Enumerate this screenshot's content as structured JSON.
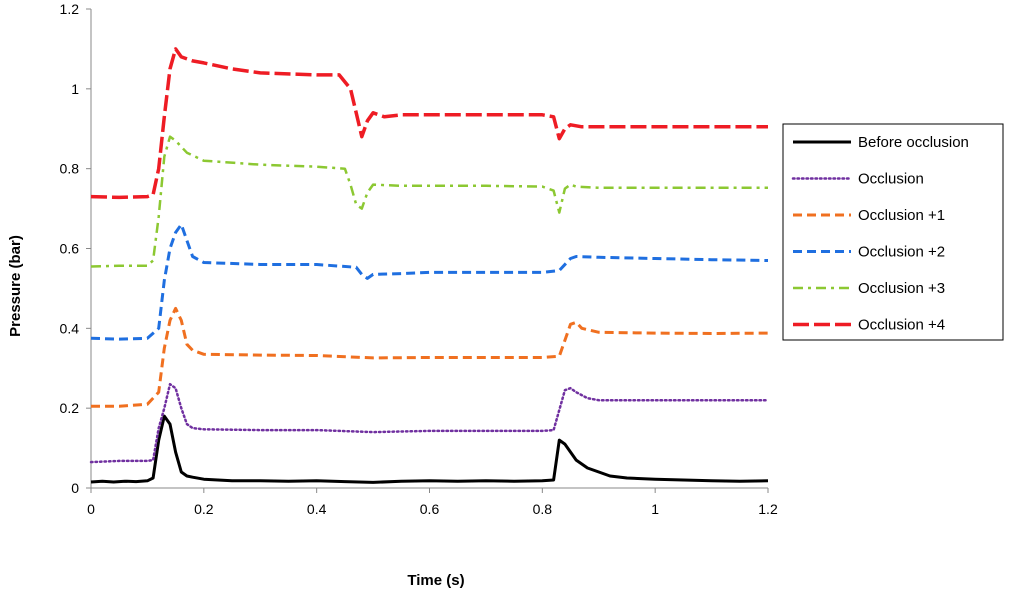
{
  "chart_data": {
    "type": "line",
    "title": "",
    "xlabel": "Time (s)",
    "ylabel": "Pressure (bar)",
    "xlim": [
      0,
      1.2
    ],
    "ylim": [
      0,
      1.2
    ],
    "xticks": [
      "0",
      "0.2",
      "0.4",
      "0.6",
      "0.8",
      "1",
      "1.2"
    ],
    "yticks": [
      "0",
      "0.2",
      "0.4",
      "0.6",
      "0.8",
      "1",
      "1.2"
    ],
    "grid": false,
    "legend_position": "right",
    "series": [
      {
        "name": "Before occlusion",
        "color": "#000000",
        "dash": "solid",
        "points": [
          [
            0,
            0.015
          ],
          [
            0.02,
            0.017
          ],
          [
            0.04,
            0.015
          ],
          [
            0.06,
            0.017
          ],
          [
            0.08,
            0.016
          ],
          [
            0.1,
            0.018
          ],
          [
            0.11,
            0.025
          ],
          [
            0.12,
            0.12
          ],
          [
            0.13,
            0.18
          ],
          [
            0.14,
            0.16
          ],
          [
            0.15,
            0.09
          ],
          [
            0.16,
            0.04
          ],
          [
            0.17,
            0.03
          ],
          [
            0.18,
            0.027
          ],
          [
            0.2,
            0.022
          ],
          [
            0.25,
            0.018
          ],
          [
            0.3,
            0.018
          ],
          [
            0.35,
            0.017
          ],
          [
            0.4,
            0.018
          ],
          [
            0.45,
            0.016
          ],
          [
            0.5,
            0.014
          ],
          [
            0.55,
            0.017
          ],
          [
            0.6,
            0.018
          ],
          [
            0.65,
            0.017
          ],
          [
            0.7,
            0.018
          ],
          [
            0.75,
            0.017
          ],
          [
            0.8,
            0.018
          ],
          [
            0.82,
            0.02
          ],
          [
            0.83,
            0.12
          ],
          [
            0.84,
            0.11
          ],
          [
            0.86,
            0.07
          ],
          [
            0.88,
            0.05
          ],
          [
            0.9,
            0.04
          ],
          [
            0.92,
            0.03
          ],
          [
            0.95,
            0.025
          ],
          [
            1.0,
            0.022
          ],
          [
            1.05,
            0.02
          ],
          [
            1.1,
            0.018
          ],
          [
            1.15,
            0.017
          ],
          [
            1.2,
            0.018
          ]
        ]
      },
      {
        "name": "Occlusion",
        "color": "#7030a0",
        "dash": "dotted",
        "points": [
          [
            0,
            0.065
          ],
          [
            0.05,
            0.068
          ],
          [
            0.1,
            0.068
          ],
          [
            0.11,
            0.07
          ],
          [
            0.12,
            0.15
          ],
          [
            0.13,
            0.2
          ],
          [
            0.14,
            0.26
          ],
          [
            0.15,
            0.25
          ],
          [
            0.16,
            0.2
          ],
          [
            0.17,
            0.16
          ],
          [
            0.18,
            0.15
          ],
          [
            0.2,
            0.147
          ],
          [
            0.3,
            0.145
          ],
          [
            0.4,
            0.145
          ],
          [
            0.5,
            0.14
          ],
          [
            0.6,
            0.143
          ],
          [
            0.7,
            0.143
          ],
          [
            0.8,
            0.143
          ],
          [
            0.82,
            0.145
          ],
          [
            0.84,
            0.245
          ],
          [
            0.85,
            0.25
          ],
          [
            0.86,
            0.24
          ],
          [
            0.88,
            0.225
          ],
          [
            0.9,
            0.22
          ],
          [
            1.0,
            0.22
          ],
          [
            1.1,
            0.22
          ],
          [
            1.2,
            0.22
          ]
        ]
      },
      {
        "name": "Occlusion +1",
        "color": "#f07020",
        "dash": "dashed",
        "points": [
          [
            0,
            0.205
          ],
          [
            0.05,
            0.205
          ],
          [
            0.1,
            0.21
          ],
          [
            0.12,
            0.24
          ],
          [
            0.13,
            0.35
          ],
          [
            0.14,
            0.42
          ],
          [
            0.15,
            0.45
          ],
          [
            0.16,
            0.42
          ],
          [
            0.17,
            0.36
          ],
          [
            0.18,
            0.345
          ],
          [
            0.2,
            0.335
          ],
          [
            0.3,
            0.333
          ],
          [
            0.4,
            0.332
          ],
          [
            0.5,
            0.326
          ],
          [
            0.6,
            0.327
          ],
          [
            0.7,
            0.327
          ],
          [
            0.8,
            0.327
          ],
          [
            0.83,
            0.33
          ],
          [
            0.85,
            0.41
          ],
          [
            0.86,
            0.415
          ],
          [
            0.87,
            0.4
          ],
          [
            0.9,
            0.39
          ],
          [
            1.0,
            0.388
          ],
          [
            1.1,
            0.387
          ],
          [
            1.2,
            0.388
          ]
        ]
      },
      {
        "name": "Occlusion +2",
        "color": "#1f6fe0",
        "dash": "dashed",
        "points": [
          [
            0,
            0.375
          ],
          [
            0.05,
            0.373
          ],
          [
            0.1,
            0.375
          ],
          [
            0.12,
            0.4
          ],
          [
            0.13,
            0.52
          ],
          [
            0.14,
            0.6
          ],
          [
            0.15,
            0.64
          ],
          [
            0.16,
            0.66
          ],
          [
            0.17,
            0.62
          ],
          [
            0.18,
            0.58
          ],
          [
            0.2,
            0.565
          ],
          [
            0.3,
            0.56
          ],
          [
            0.4,
            0.56
          ],
          [
            0.47,
            0.553
          ],
          [
            0.48,
            0.535
          ],
          [
            0.49,
            0.525
          ],
          [
            0.5,
            0.535
          ],
          [
            0.55,
            0.537
          ],
          [
            0.6,
            0.54
          ],
          [
            0.7,
            0.54
          ],
          [
            0.8,
            0.54
          ],
          [
            0.83,
            0.545
          ],
          [
            0.85,
            0.575
          ],
          [
            0.86,
            0.58
          ],
          [
            0.9,
            0.578
          ],
          [
            1.0,
            0.575
          ],
          [
            1.1,
            0.572
          ],
          [
            1.2,
            0.57
          ]
        ]
      },
      {
        "name": "Occlusion +3",
        "color": "#8cc832",
        "dash": "dashdot",
        "points": [
          [
            0,
            0.555
          ],
          [
            0.05,
            0.557
          ],
          [
            0.1,
            0.557
          ],
          [
            0.11,
            0.57
          ],
          [
            0.12,
            0.68
          ],
          [
            0.13,
            0.83
          ],
          [
            0.14,
            0.88
          ],
          [
            0.15,
            0.87
          ],
          [
            0.17,
            0.84
          ],
          [
            0.2,
            0.82
          ],
          [
            0.3,
            0.81
          ],
          [
            0.4,
            0.805
          ],
          [
            0.45,
            0.8
          ],
          [
            0.46,
            0.76
          ],
          [
            0.47,
            0.71
          ],
          [
            0.48,
            0.7
          ],
          [
            0.49,
            0.74
          ],
          [
            0.5,
            0.76
          ],
          [
            0.55,
            0.757
          ],
          [
            0.6,
            0.757
          ],
          [
            0.7,
            0.757
          ],
          [
            0.8,
            0.755
          ],
          [
            0.82,
            0.745
          ],
          [
            0.83,
            0.69
          ],
          [
            0.84,
            0.75
          ],
          [
            0.85,
            0.76
          ],
          [
            0.86,
            0.755
          ],
          [
            0.9,
            0.752
          ],
          [
            1.0,
            0.752
          ],
          [
            1.1,
            0.752
          ],
          [
            1.2,
            0.752
          ]
        ]
      },
      {
        "name": "Occlusion +4",
        "color": "#ee1c24",
        "dash": "longdash",
        "points": [
          [
            0,
            0.73
          ],
          [
            0.05,
            0.728
          ],
          [
            0.1,
            0.73
          ],
          [
            0.11,
            0.735
          ],
          [
            0.12,
            0.8
          ],
          [
            0.13,
            0.93
          ],
          [
            0.14,
            1.05
          ],
          [
            0.15,
            1.1
          ],
          [
            0.16,
            1.08
          ],
          [
            0.18,
            1.07
          ],
          [
            0.2,
            1.065
          ],
          [
            0.25,
            1.05
          ],
          [
            0.3,
            1.04
          ],
          [
            0.4,
            1.035
          ],
          [
            0.44,
            1.035
          ],
          [
            0.46,
            1.0
          ],
          [
            0.47,
            0.94
          ],
          [
            0.48,
            0.88
          ],
          [
            0.49,
            0.92
          ],
          [
            0.5,
            0.94
          ],
          [
            0.52,
            0.93
          ],
          [
            0.55,
            0.935
          ],
          [
            0.6,
            0.935
          ],
          [
            0.7,
            0.935
          ],
          [
            0.8,
            0.935
          ],
          [
            0.82,
            0.93
          ],
          [
            0.83,
            0.875
          ],
          [
            0.84,
            0.9
          ],
          [
            0.85,
            0.91
          ],
          [
            0.87,
            0.905
          ],
          [
            0.9,
            0.905
          ],
          [
            1.0,
            0.905
          ],
          [
            1.1,
            0.905
          ],
          [
            1.2,
            0.905
          ]
        ]
      }
    ]
  }
}
